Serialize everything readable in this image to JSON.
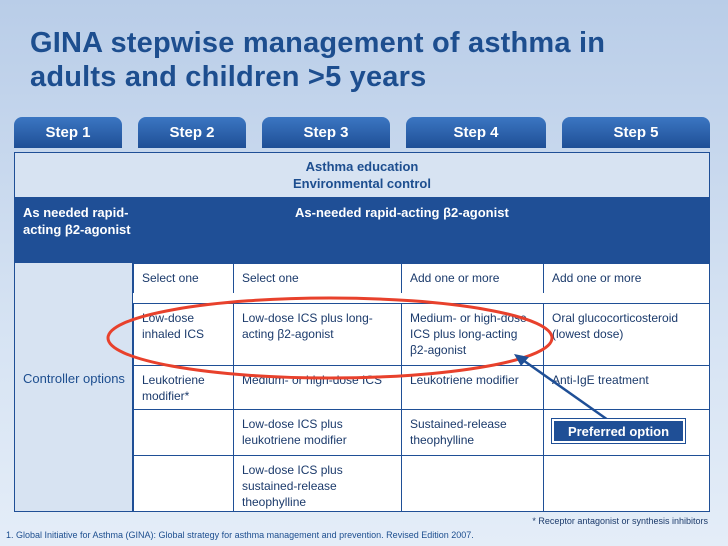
{
  "title": {
    "line1": "GINA stepwise management of asthma in",
    "line2": "adults and children >5 years"
  },
  "steps": [
    "Step 1",
    "Step 2",
    "Step 3",
    "Step 4",
    "Step 5"
  ],
  "band1": {
    "line1": "Asthma education",
    "line2": "Environmental control"
  },
  "band2": {
    "left": "As needed rapid-acting β2-agonist",
    "right": "As-needed rapid-acting β2-agonist"
  },
  "controller_label": "Controller options",
  "table": {
    "headers": [
      "Select one",
      "Select one",
      "Add one or more",
      "Add one or more"
    ],
    "rows": [
      [
        "Low-dose inhaled ICS",
        "Low-dose ICS plus long-acting β2-agonist",
        "Medium- or high-dose ICS plus long-acting β2-agonist",
        "Oral glucocorticosteroid (lowest dose)"
      ],
      [
        "Leukotriene modifier*",
        "Medium- or high-dose ICS",
        "Leukotriene modifier",
        "Anti-IgE treatment"
      ],
      [
        "",
        "Low-dose ICS plus leukotriene modifier",
        "Sustained-release theophylline",
        ""
      ],
      [
        "",
        "Low-dose ICS plus sustained-release theophylline",
        "",
        ""
      ]
    ]
  },
  "preferred_label": "Preferred option",
  "footnote": "* Receptor antagonist or synthesis inhibitors",
  "reference": "1. Global Initiative for Asthma (GINA): Global strategy for asthma management and prevention. Revised Edition 2007.",
  "colors": {
    "accent": "#1f4f96",
    "highlight_ring": "#e8412c",
    "light_fill": "#d7e3f2"
  }
}
